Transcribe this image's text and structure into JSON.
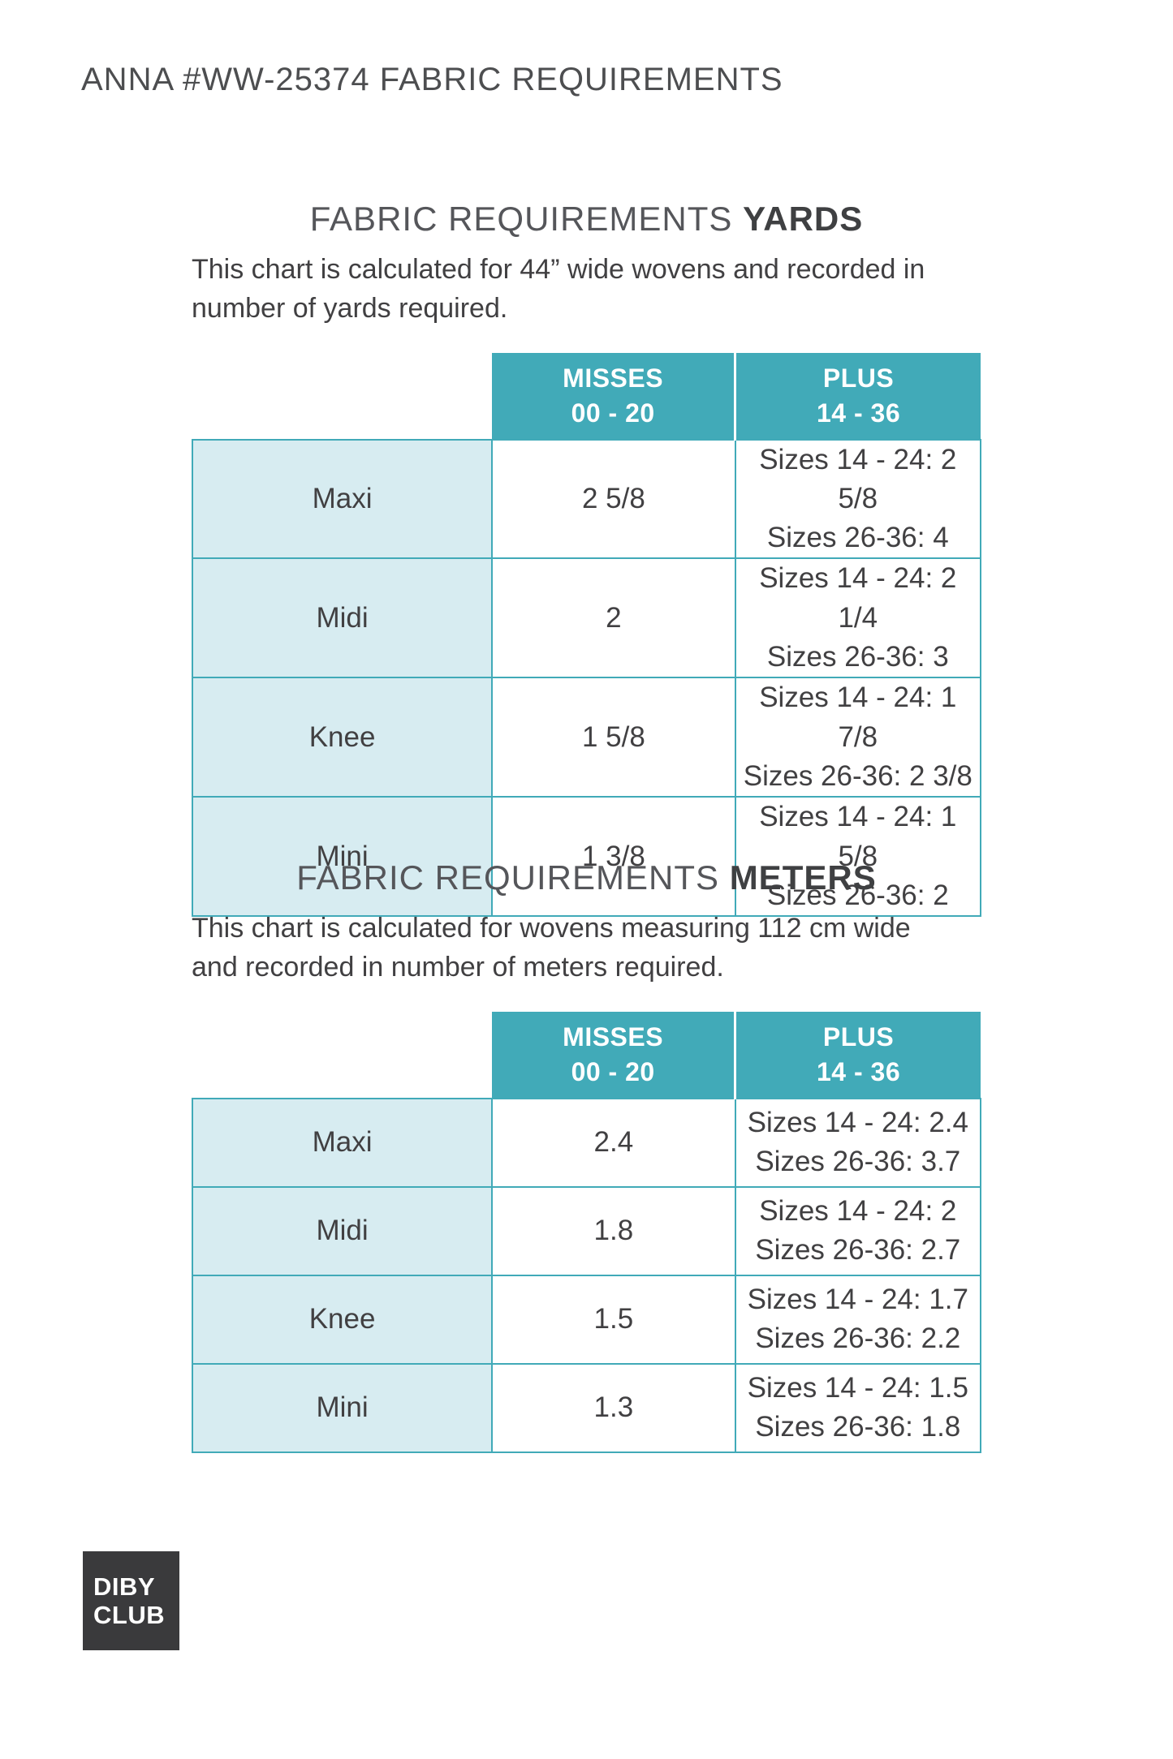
{
  "page_title": "ANNA #WW-25374 FABRIC REQUIREMENTS",
  "columns": {
    "misses_line1": "MISSES",
    "misses_line2": "00 - 20",
    "plus_line1": "PLUS",
    "plus_line2": "14 - 36"
  },
  "yards": {
    "title_prefix": "FABRIC REQUIREMENTS",
    "title_emphasis": "YARDS",
    "description": "This chart is calculated for 44” wide wovens and recorded in number of yards required.",
    "rows": [
      {
        "label": "Maxi",
        "misses": "2 5/8",
        "plus_line1": "Sizes 14 - 24: 2 5/8",
        "plus_line2": "Sizes 26-36: 4"
      },
      {
        "label": "Midi",
        "misses": "2",
        "plus_line1": "Sizes 14 - 24: 2 1/4",
        "plus_line2": "Sizes 26-36: 3"
      },
      {
        "label": "Knee",
        "misses": "1 5/8",
        "plus_line1": "Sizes 14 - 24: 1 7/8",
        "plus_line2": "Sizes 26-36: 2 3/8"
      },
      {
        "label": "Mini",
        "misses": "1 3/8",
        "plus_line1": "Sizes 14 - 24: 1 5/8",
        "plus_line2": "Sizes 26-36: 2"
      }
    ]
  },
  "meters": {
    "title_prefix": "FABRIC REQUIREMENTS",
    "title_emphasis": "METERS",
    "description": "This chart is calculated for wovens measuring 112 cm wide and recorded in number of meters required.",
    "rows": [
      {
        "label": "Maxi",
        "misses": "2.4",
        "plus_line1": "Sizes 14 - 24: 2.4",
        "plus_line2": "Sizes 26-36: 3.7"
      },
      {
        "label": "Midi",
        "misses": "1.8",
        "plus_line1": "Sizes 14 - 24: 2",
        "plus_line2": "Sizes 26-36: 2.7"
      },
      {
        "label": "Knee",
        "misses": "1.5",
        "plus_line1": "Sizes 14 - 24: 1.7",
        "plus_line2": "Sizes 26-36: 2.2"
      },
      {
        "label": "Mini",
        "misses": "1.3",
        "plus_line1": "Sizes 14 - 24: 1.5",
        "plus_line2": "Sizes 26-36: 1.8"
      }
    ]
  },
  "logo": {
    "line1": "DIBY",
    "line2": "CLUB"
  },
  "colors": {
    "teal_header": "#41aab8",
    "light_blue_cell": "#d7ecf1",
    "table_border": "#41aab8",
    "body_text": "#414042",
    "heading_gray": "#55565a",
    "logo_background": "#3a3a3c",
    "header_text_on_teal": "#ffffff"
  }
}
